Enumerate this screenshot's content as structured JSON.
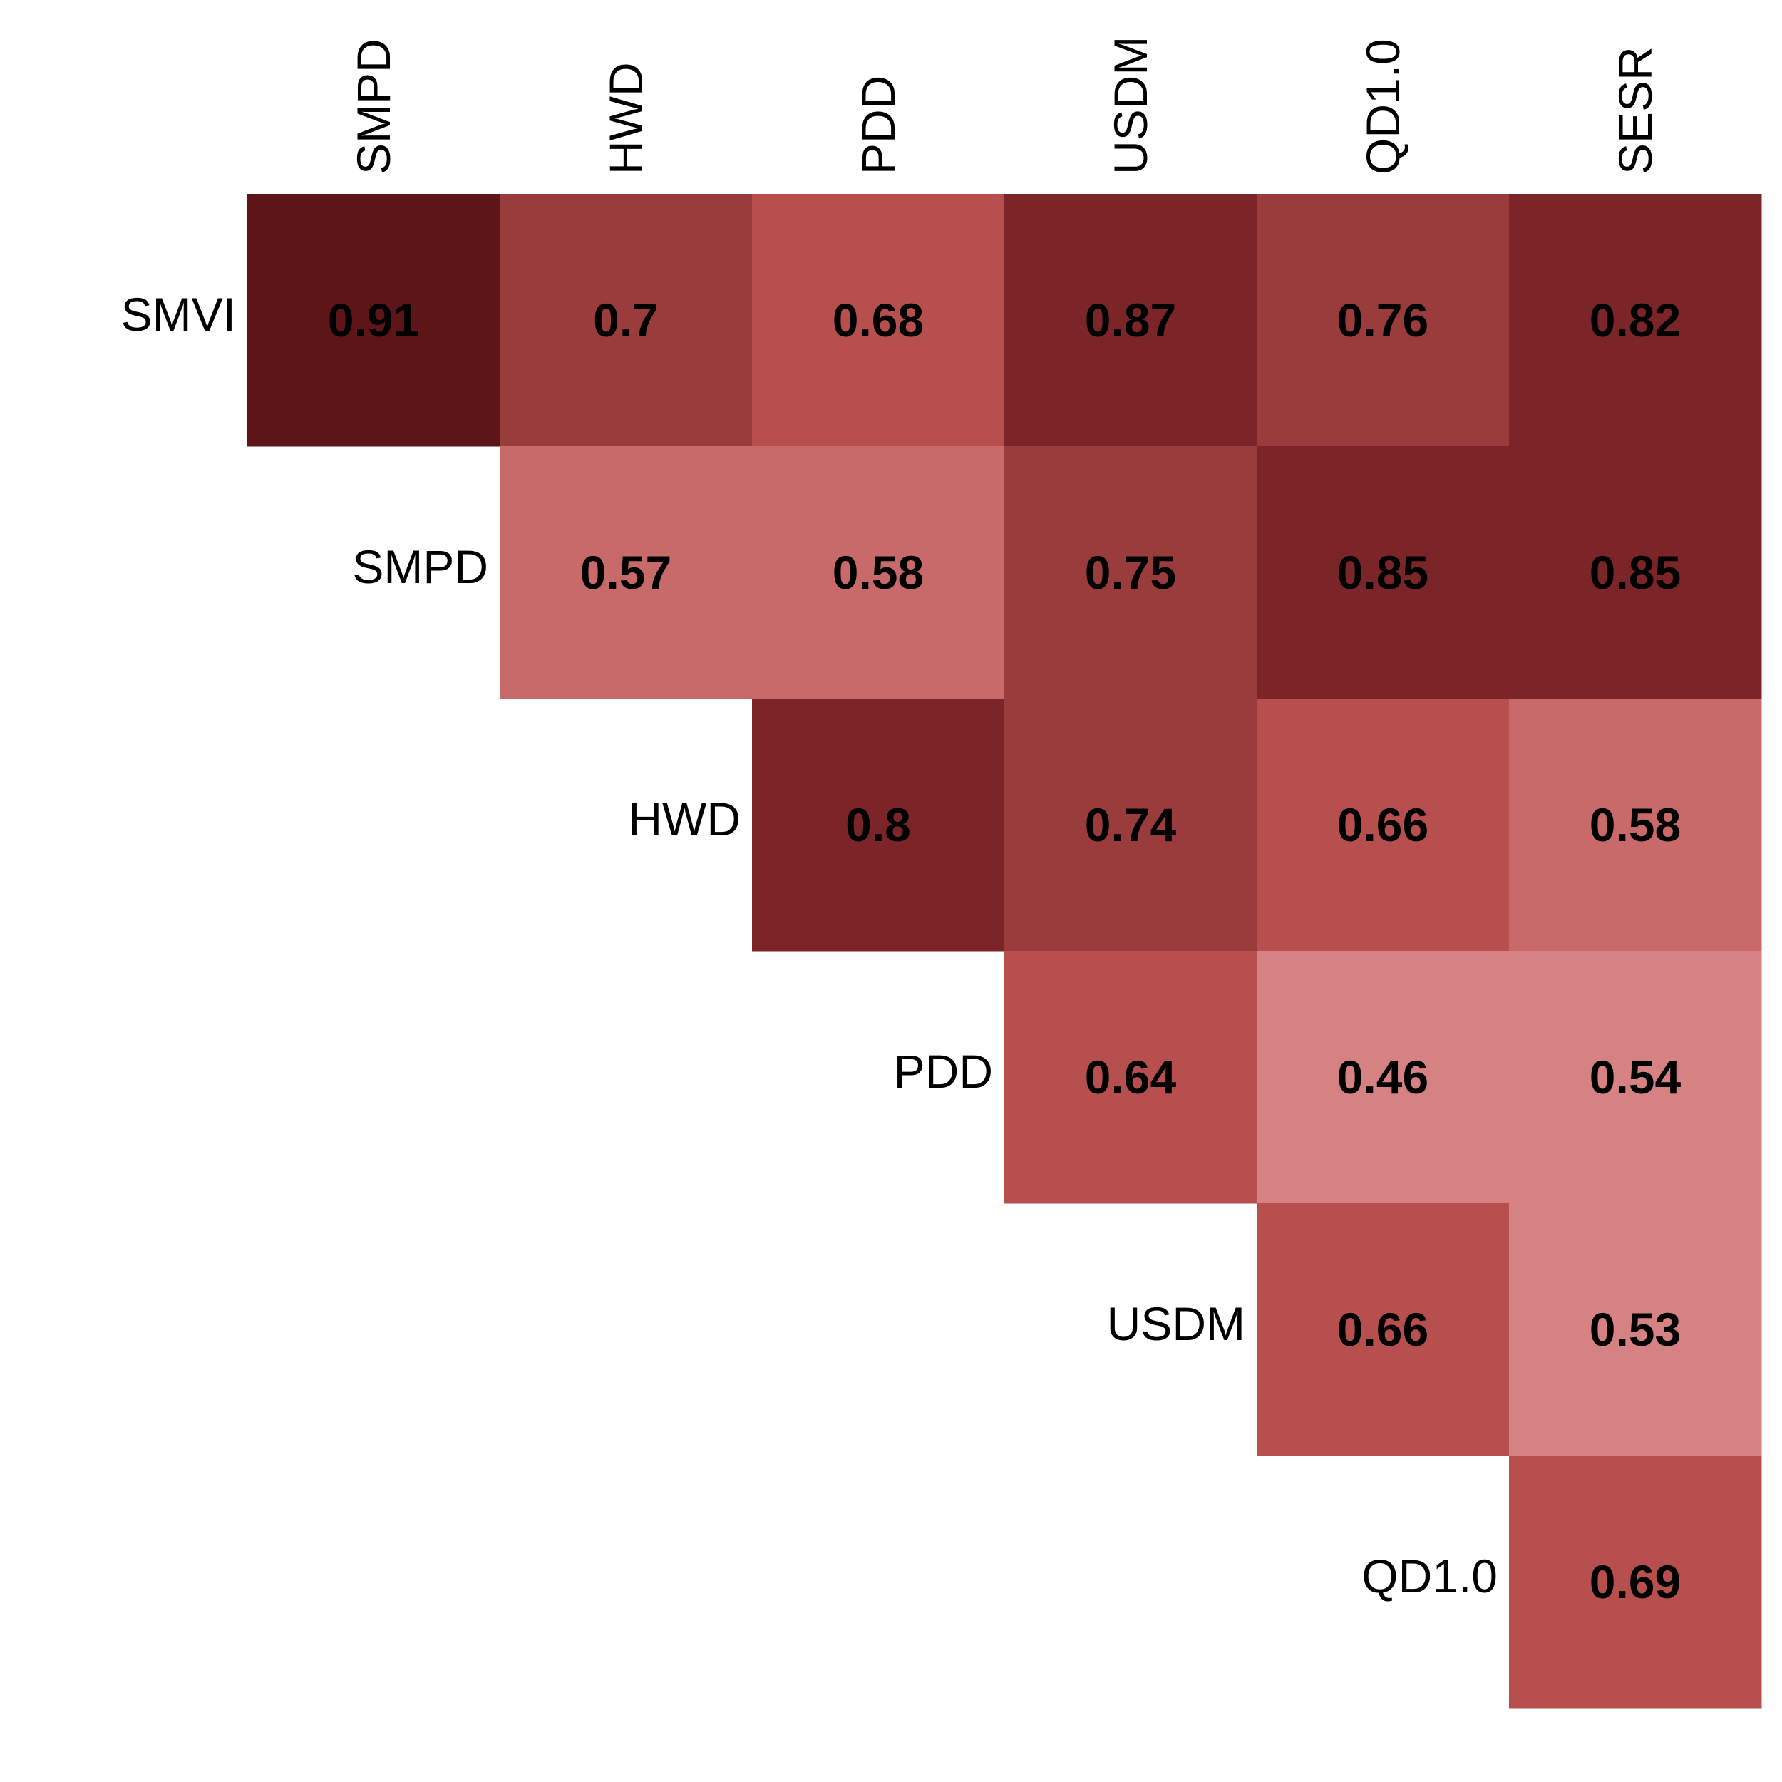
{
  "chart_data": {
    "type": "heatmap",
    "columns": [
      "SMPD",
      "HWD",
      "PDD",
      "USDM",
      "QD1.0",
      "SESR"
    ],
    "rows": [
      "SMVI",
      "SMPD",
      "HWD",
      "PDD",
      "USDM",
      "QD1.0"
    ],
    "values": [
      [
        0.91,
        0.7,
        0.68,
        0.87,
        0.76,
        0.82
      ],
      [
        null,
        0.57,
        0.58,
        0.75,
        0.85,
        0.85
      ],
      [
        null,
        null,
        0.8,
        0.74,
        0.66,
        0.58
      ],
      [
        null,
        null,
        null,
        0.64,
        0.46,
        0.54
      ],
      [
        null,
        null,
        null,
        null,
        0.66,
        0.53
      ],
      [
        null,
        null,
        null,
        null,
        null,
        0.69
      ]
    ],
    "labels": [
      [
        "0.91",
        "0.7",
        "0.68",
        "0.87",
        "0.76",
        "0.82"
      ],
      [
        "",
        "0.57",
        "0.58",
        "0.75",
        "0.85",
        "0.85"
      ],
      [
        "",
        "",
        "0.8",
        "0.74",
        "0.66",
        "0.58"
      ],
      [
        "",
        "",
        "",
        "0.64",
        "0.46",
        "0.54"
      ],
      [
        "",
        "",
        "",
        "",
        "0.66",
        "0.53"
      ],
      [
        "",
        "",
        "",
        "",
        "",
        "0.69"
      ]
    ],
    "layout": "upper-triangle",
    "legend": "none",
    "grid": false,
    "color_bins": [
      {
        "min": 0.9,
        "max": 1.0,
        "color": "#5d1517"
      },
      {
        "min": 0.8,
        "max": 0.9,
        "color": "#7b2528"
      },
      {
        "min": 0.7,
        "max": 0.8,
        "color": "#9a3b3c"
      },
      {
        "min": 0.6,
        "max": 0.7,
        "color": "#b84f4f"
      },
      {
        "min": 0.55,
        "max": 0.6,
        "color": "#c86a6a"
      },
      {
        "min": 0.0,
        "max": 0.55,
        "color": "#d68283"
      }
    ]
  }
}
